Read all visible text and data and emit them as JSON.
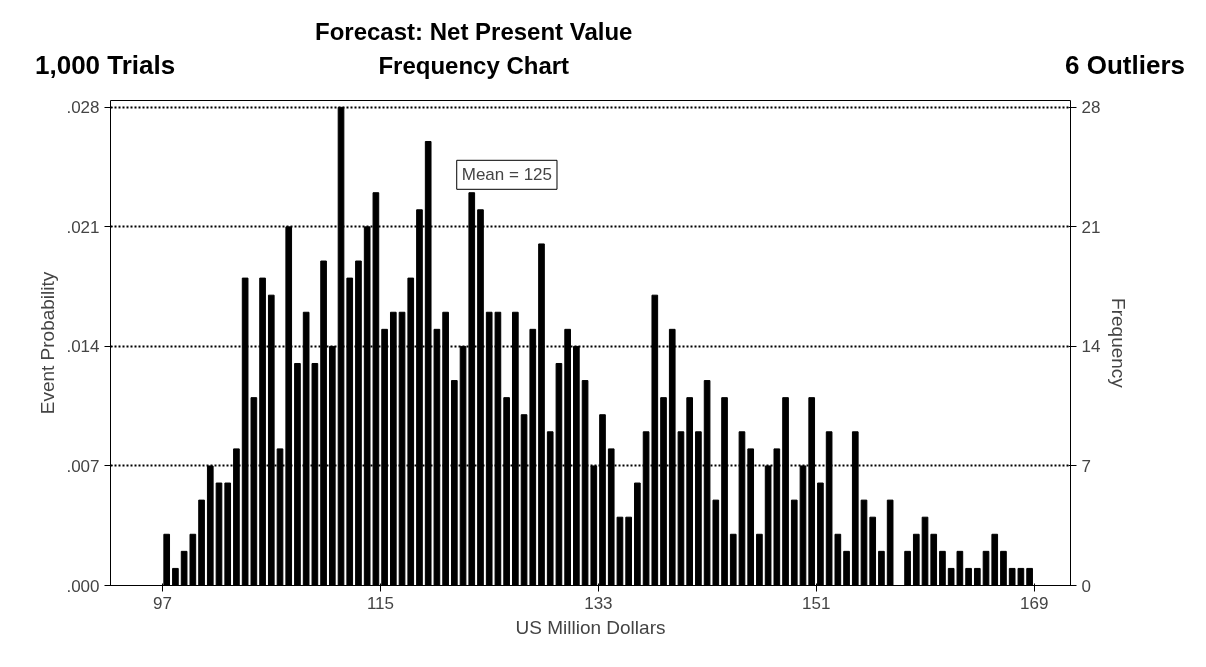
{
  "chart_data": {
    "type": "histogram",
    "title": "Forecast: Net Present Value",
    "subtitle": "Frequency Chart",
    "xlabel": "US Million Dollars",
    "ylabel": "Event Probability",
    "y2label": "Frequency",
    "annotations": [
      "1,000 Trials",
      "6 Outliers",
      "Mean = 125"
    ],
    "bins": [
      97,
      97.72,
      98.44,
      99.16,
      99.88,
      100.6,
      101.32,
      102.04,
      102.76,
      103.48,
      104.2,
      104.92,
      105.64,
      106.36,
      107.08,
      107.8,
      108.52,
      109.24,
      109.96,
      110.68,
      111.4,
      112.12,
      112.84,
      113.56,
      114.28,
      115,
      115.72,
      116.44,
      117.16,
      117.88,
      118.6,
      119.32,
      120.04,
      120.76,
      121.48,
      122.2,
      122.92,
      123.64,
      124.36,
      125.08,
      125.8,
      126.52,
      127.24,
      127.96,
      128.68,
      129.4,
      130.12,
      130.84,
      131.56,
      132.28,
      133,
      133.72,
      134.44,
      135.16,
      135.88,
      136.6,
      137.32,
      138.04,
      138.76,
      139.48,
      140.2,
      140.92,
      141.64,
      142.36,
      143.08,
      143.8,
      144.52,
      145.24,
      145.96,
      146.68,
      147.4,
      148.12,
      148.84,
      149.56,
      150.28,
      151,
      151.72,
      152.44,
      153.16,
      153.88,
      154.6,
      155.32,
      156.04,
      156.76,
      157.48,
      158.2,
      158.92,
      159.64,
      160.36,
      161.08,
      161.8,
      162.52,
      163.24,
      163.96,
      164.68,
      165.4,
      166.12,
      166.84,
      167.56,
      168.28,
      169
    ],
    "series": [
      {
        "color": "#000000",
        "axis": "y2",
        "values": [
          3,
          1,
          2,
          3,
          5,
          7,
          6,
          6,
          8,
          18,
          11,
          18,
          17,
          8,
          21,
          13,
          16,
          13,
          19,
          14,
          28,
          18,
          19,
          21,
          23,
          15,
          16,
          16,
          18,
          22,
          26,
          15,
          16,
          12,
          14,
          23,
          22,
          16,
          16,
          11,
          16,
          10,
          15,
          20,
          9,
          13,
          15,
          14,
          12,
          7,
          10,
          8,
          4,
          4,
          6,
          9,
          17,
          11,
          15,
          9,
          11,
          9,
          12,
          5,
          11,
          3,
          9,
          8,
          3,
          7,
          8,
          11,
          5,
          7,
          11,
          6,
          9,
          3,
          2,
          9,
          5,
          4,
          2,
          5,
          0,
          2,
          3,
          4,
          3,
          2,
          1,
          2,
          1,
          1,
          2,
          3,
          2,
          1,
          1,
          1
        ]
      }
    ],
    "xlim": [
      92.7,
      172
    ],
    "xticks": [
      97,
      115,
      133,
      151,
      169
    ],
    "ylim": [
      0,
      0.0284
    ],
    "yticks": [
      {
        "value": 0,
        "label": ".000"
      },
      {
        "value": 0.007,
        "label": ".007"
      },
      {
        "value": 0.014,
        "label": ".014"
      },
      {
        "value": 0.021,
        "label": ".021"
      },
      {
        "value": 0.028,
        "label": ".028"
      }
    ],
    "y2lim": [
      0,
      28.4
    ],
    "y2ticks": [
      0,
      7,
      14,
      21,
      28
    ],
    "grid": "y"
  }
}
